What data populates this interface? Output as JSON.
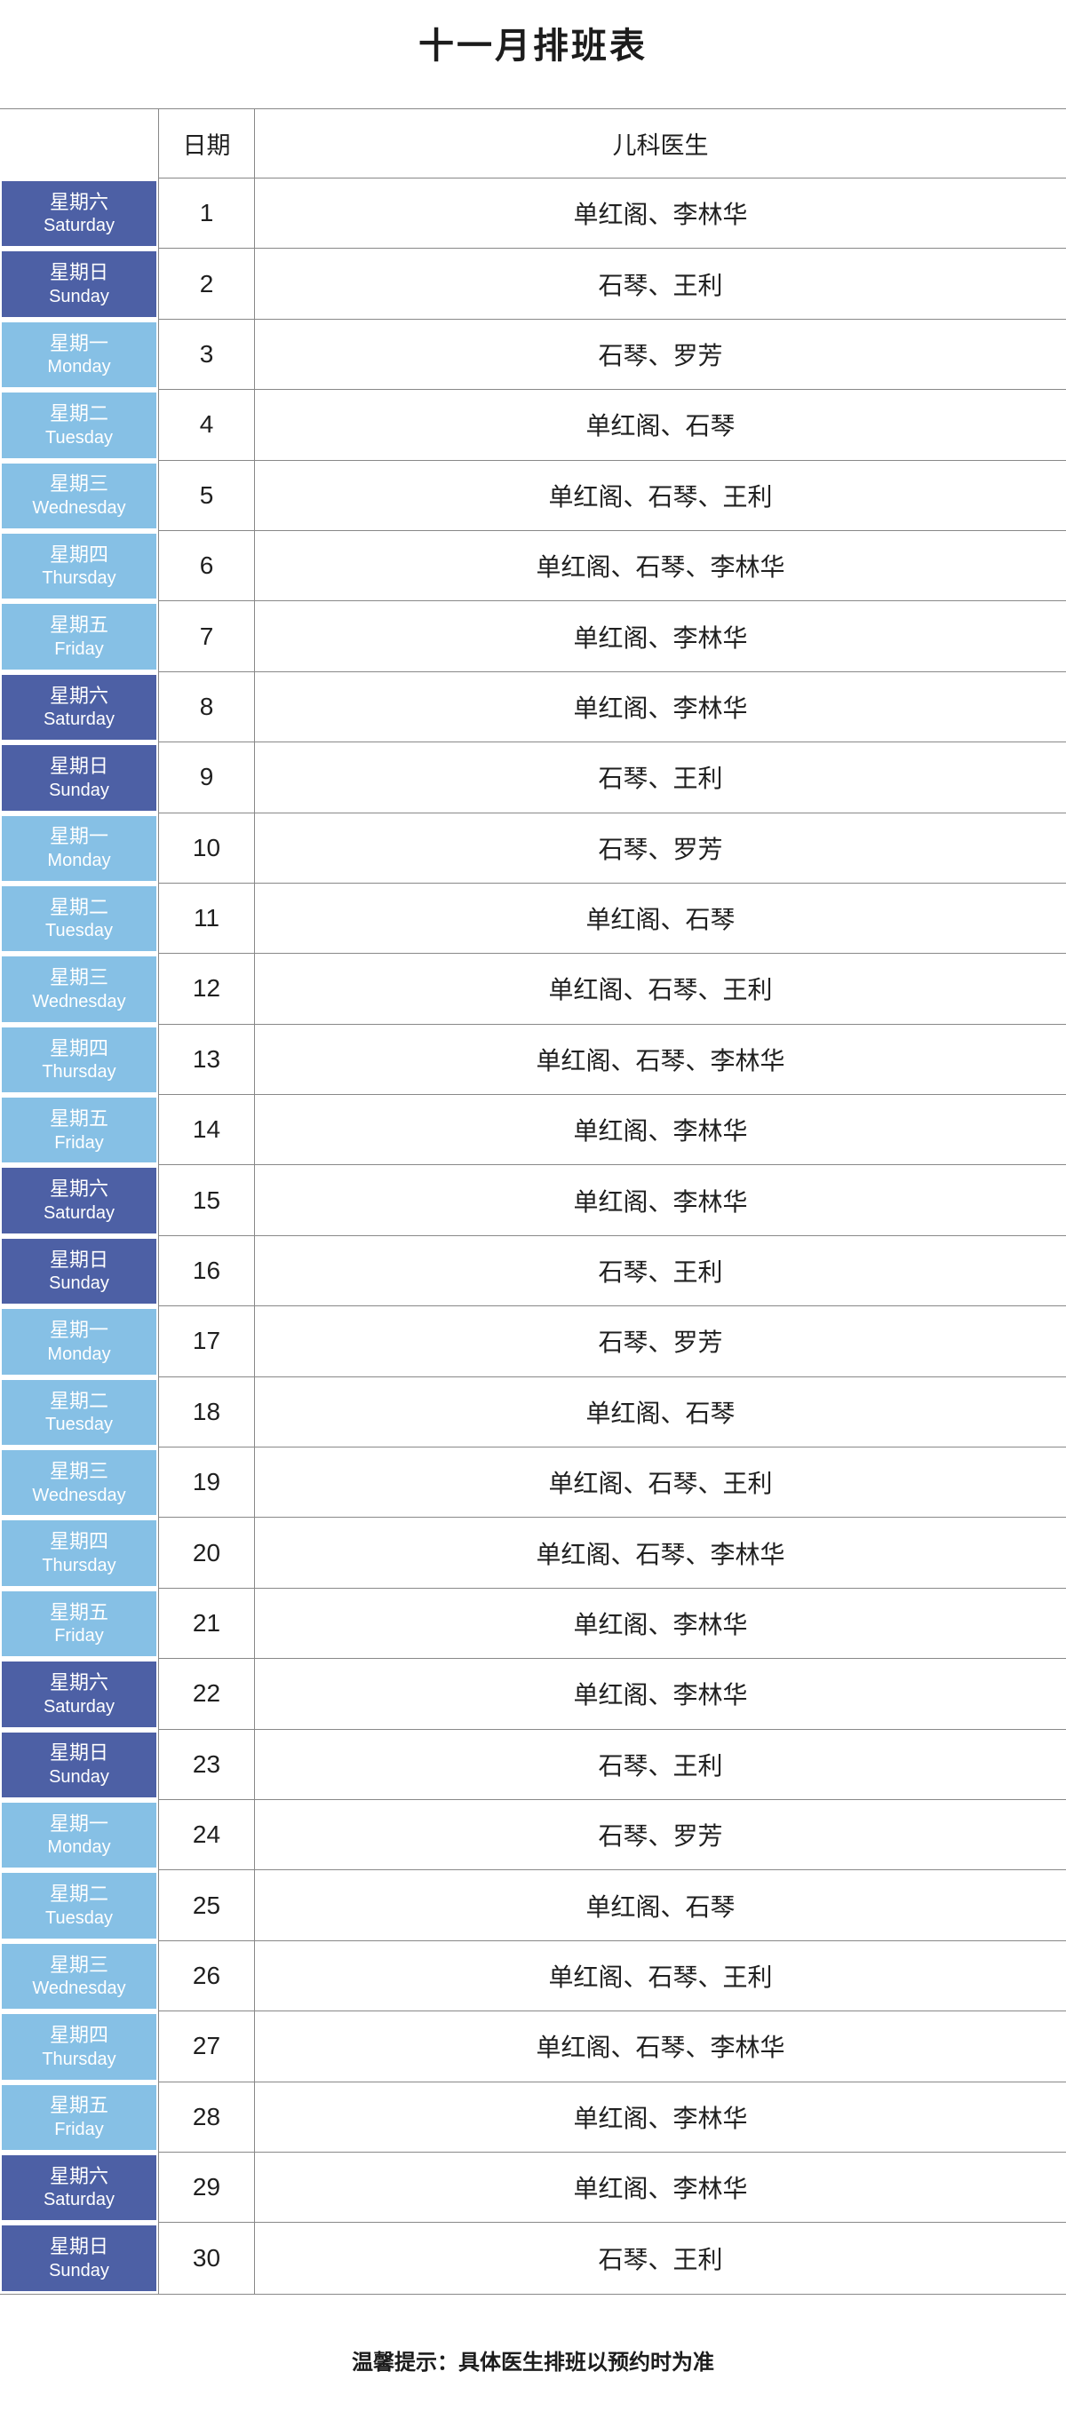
{
  "page": {
    "title": "十一月排班表",
    "footer_note": "温馨提示：具体医生排班以预约时为准"
  },
  "table": {
    "header": {
      "weekday": "",
      "date": "日期",
      "doctors": "儿科医生"
    },
    "rows": [
      {
        "weekday_cn": "星期六",
        "weekday_en": "Saturday",
        "date": "1",
        "doctors": "单红阁、李林华",
        "weekend": true
      },
      {
        "weekday_cn": "星期日",
        "weekday_en": "Sunday",
        "date": "2",
        "doctors": "石琴、王利",
        "weekend": true
      },
      {
        "weekday_cn": "星期一",
        "weekday_en": "Monday",
        "date": "3",
        "doctors": "石琴、罗芳",
        "weekend": false
      },
      {
        "weekday_cn": "星期二",
        "weekday_en": "Tuesday",
        "date": "4",
        "doctors": "单红阁、石琴",
        "weekend": false
      },
      {
        "weekday_cn": "星期三",
        "weekday_en": "Wednesday",
        "date": "5",
        "doctors": "单红阁、石琴、王利",
        "weekend": false
      },
      {
        "weekday_cn": "星期四",
        "weekday_en": "Thursday",
        "date": "6",
        "doctors": "单红阁、石琴、李林华",
        "weekend": false
      },
      {
        "weekday_cn": "星期五",
        "weekday_en": "Friday",
        "date": "7",
        "doctors": "单红阁、李林华",
        "weekend": false
      },
      {
        "weekday_cn": "星期六",
        "weekday_en": "Saturday",
        "date": "8",
        "doctors": "单红阁、李林华",
        "weekend": true
      },
      {
        "weekday_cn": "星期日",
        "weekday_en": "Sunday",
        "date": "9",
        "doctors": "石琴、王利",
        "weekend": true
      },
      {
        "weekday_cn": "星期一",
        "weekday_en": "Monday",
        "date": "10",
        "doctors": "石琴、罗芳",
        "weekend": false
      },
      {
        "weekday_cn": "星期二",
        "weekday_en": "Tuesday",
        "date": "11",
        "doctors": "单红阁、石琴",
        "weekend": false
      },
      {
        "weekday_cn": "星期三",
        "weekday_en": "Wednesday",
        "date": "12",
        "doctors": "单红阁、石琴、王利",
        "weekend": false
      },
      {
        "weekday_cn": "星期四",
        "weekday_en": "Thursday",
        "date": "13",
        "doctors": "单红阁、石琴、李林华",
        "weekend": false
      },
      {
        "weekday_cn": "星期五",
        "weekday_en": "Friday",
        "date": "14",
        "doctors": "单红阁、李林华",
        "weekend": false
      },
      {
        "weekday_cn": "星期六",
        "weekday_en": "Saturday",
        "date": "15",
        "doctors": "单红阁、李林华",
        "weekend": true
      },
      {
        "weekday_cn": "星期日",
        "weekday_en": "Sunday",
        "date": "16",
        "doctors": "石琴、王利",
        "weekend": true
      },
      {
        "weekday_cn": "星期一",
        "weekday_en": "Monday",
        "date": "17",
        "doctors": "石琴、罗芳",
        "weekend": false
      },
      {
        "weekday_cn": "星期二",
        "weekday_en": "Tuesday",
        "date": "18",
        "doctors": "单红阁、石琴",
        "weekend": false
      },
      {
        "weekday_cn": "星期三",
        "weekday_en": "Wednesday",
        "date": "19",
        "doctors": "单红阁、石琴、王利",
        "weekend": false
      },
      {
        "weekday_cn": "星期四",
        "weekday_en": "Thursday",
        "date": "20",
        "doctors": "单红阁、石琴、李林华",
        "weekend": false
      },
      {
        "weekday_cn": "星期五",
        "weekday_en": "Friday",
        "date": "21",
        "doctors": "单红阁、李林华",
        "weekend": false
      },
      {
        "weekday_cn": "星期六",
        "weekday_en": "Saturday",
        "date": "22",
        "doctors": "单红阁、李林华",
        "weekend": true
      },
      {
        "weekday_cn": "星期日",
        "weekday_en": "Sunday",
        "date": "23",
        "doctors": "石琴、王利",
        "weekend": true
      },
      {
        "weekday_cn": "星期一",
        "weekday_en": "Monday",
        "date": "24",
        "doctors": "石琴、罗芳",
        "weekend": false
      },
      {
        "weekday_cn": "星期二",
        "weekday_en": "Tuesday",
        "date": "25",
        "doctors": "单红阁、石琴",
        "weekend": false
      },
      {
        "weekday_cn": "星期三",
        "weekday_en": "Wednesday",
        "date": "26",
        "doctors": "单红阁、石琴、王利",
        "weekend": false
      },
      {
        "weekday_cn": "星期四",
        "weekday_en": "Thursday",
        "date": "27",
        "doctors": "单红阁、石琴、李林华",
        "weekend": false
      },
      {
        "weekday_cn": "星期五",
        "weekday_en": "Friday",
        "date": "28",
        "doctors": "单红阁、李林华",
        "weekend": false
      },
      {
        "weekday_cn": "星期六",
        "weekday_en": "Saturday",
        "date": "29",
        "doctors": "单红阁、李林华",
        "weekend": true
      },
      {
        "weekday_cn": "星期日",
        "weekday_en": "Sunday",
        "date": "30",
        "doctors": "石琴、王利",
        "weekend": true
      }
    ]
  },
  "colors": {
    "weekend_bg": "#4d60a5",
    "weekday_bg": "#86c0e5",
    "grid_line": "#888888",
    "cell_text": "#ffffff",
    "body_text": "#1f1f1f"
  }
}
